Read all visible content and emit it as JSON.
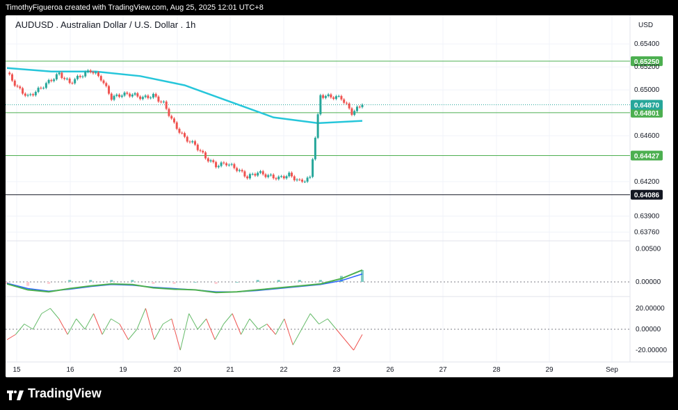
{
  "header": {
    "attribution": "TimothyFigueroa created with TradingView.com, Aug 25, 2025 12:01 UTC+8"
  },
  "footer": {
    "brand": "TradingView"
  },
  "colors": {
    "up": "#26a69a",
    "down": "#ef5350",
    "ma": "#26c6da",
    "level": "#4caf50",
    "support_dark": "#131722",
    "macd_fast": "#4caf50",
    "macd_slow": "#2962ff",
    "stoch_up": "#66bb6a",
    "stoch_down": "#ef5350"
  },
  "chart_data": {
    "type": "candlestick",
    "title": "AUDUSD . Australian Dollar / U.S. Dollar . 1h",
    "currency": "USD",
    "price_ticks": [
      "0.65400",
      "0.65200",
      "0.65000",
      "0.64600",
      "0.64200",
      "0.63900",
      "0.63760"
    ],
    "x_ticks": [
      "15",
      "16",
      "19",
      "20",
      "21",
      "22",
      "23",
      "26",
      "27",
      "28",
      "29",
      "Sep"
    ],
    "levels": [
      {
        "label": "0.65250",
        "value": 0.6525,
        "color": "#4caf50"
      },
      {
        "label": "0.64801",
        "value": 0.64801,
        "color": "#4caf50"
      },
      {
        "label": "0.64427",
        "value": 0.64427,
        "color": "#4caf50"
      },
      {
        "label": "0.64086",
        "value": 0.64086,
        "color": "#131722"
      }
    ],
    "last_price": {
      "label": "0.64870",
      "value": 0.6487
    },
    "price_series": [
      {
        "x": "Aug 14 20:00",
        "close": 0.6515
      },
      {
        "x": "Aug 15 00:00",
        "close": 0.6502
      },
      {
        "x": "Aug 15 06:00",
        "close": 0.6494
      },
      {
        "x": "Aug 15 12:00",
        "close": 0.65
      },
      {
        "x": "Aug 15 18:00",
        "close": 0.6507
      },
      {
        "x": "Aug 16 00:00",
        "close": 0.6514
      },
      {
        "x": "Aug 16 06:00",
        "close": 0.6506
      },
      {
        "x": "Aug 16 12:00",
        "close": 0.6512
      },
      {
        "x": "Aug 16 18:00",
        "close": 0.6517
      },
      {
        "x": "Aug 18 00:00",
        "close": 0.651
      },
      {
        "x": "Aug 18 06:00",
        "close": 0.6493
      },
      {
        "x": "Aug 18 12:00",
        "close": 0.6496
      },
      {
        "x": "Aug 18 18:00",
        "close": 0.6496
      },
      {
        "x": "Aug 19 00:00",
        "close": 0.6493
      },
      {
        "x": "Aug 19 06:00",
        "close": 0.6495
      },
      {
        "x": "Aug 19 12:00",
        "close": 0.6488
      },
      {
        "x": "Aug 19 18:00",
        "close": 0.647
      },
      {
        "x": "Aug 20 00:00",
        "close": 0.6458
      },
      {
        "x": "Aug 20 06:00",
        "close": 0.6452
      },
      {
        "x": "Aug 20 12:00",
        "close": 0.6441
      },
      {
        "x": "Aug 20 18:00",
        "close": 0.6434
      },
      {
        "x": "Aug 21 00:00",
        "close": 0.6436
      },
      {
        "x": "Aug 21 06:00",
        "close": 0.6431
      },
      {
        "x": "Aug 21 12:00",
        "close": 0.6424
      },
      {
        "x": "Aug 21 18:00",
        "close": 0.6428
      },
      {
        "x": "Aug 22 00:00",
        "close": 0.6425
      },
      {
        "x": "Aug 22 06:00",
        "close": 0.6423
      },
      {
        "x": "Aug 22 12:00",
        "close": 0.6426
      },
      {
        "x": "Aug 22 18:00",
        "close": 0.642
      },
      {
        "x": "Aug 22 22:00",
        "close": 0.6423
      },
      {
        "x": "Aug 23 00:00",
        "close": 0.6495
      },
      {
        "x": "Aug 23 04:00",
        "close": 0.6494
      },
      {
        "x": "Aug 23 08:00",
        "close": 0.6493
      },
      {
        "x": "Aug 23 10:00",
        "close": 0.648
      },
      {
        "x": "Aug 23 12:00",
        "close": 0.6487
      }
    ],
    "ma_series": [
      {
        "x": "Aug 14 20:00",
        "value": 0.6519
      },
      {
        "x": "Aug 16 00:00",
        "value": 0.6516
      },
      {
        "x": "Aug 18 00:00",
        "value": 0.6516
      },
      {
        "x": "Aug 19 00:00",
        "value": 0.6512
      },
      {
        "x": "Aug 20 00:00",
        "value": 0.6504
      },
      {
        "x": "Aug 21 00:00",
        "value": 0.649
      },
      {
        "x": "Aug 22 00:00",
        "value": 0.6476
      },
      {
        "x": "Aug 23 00:00",
        "value": 0.6471
      },
      {
        "x": "Aug 23 12:00",
        "value": 0.6473
      }
    ],
    "macd": {
      "ticks": [
        "0.00500",
        "0.00000"
      ],
      "fast": [
        -0.0003,
        -0.0012,
        -0.0015,
        -0.001,
        -0.0006,
        -0.0003,
        -0.0004,
        -0.0009,
        -0.0011,
        -0.0012,
        -0.0016,
        -0.0015,
        -0.0012,
        -0.0009,
        -0.0006,
        -0.0003,
        0.0005,
        0.0018
      ],
      "slow": [
        -0.0002,
        -0.001,
        -0.0014,
        -0.0011,
        -0.0007,
        -0.0004,
        -0.0005,
        -0.0008,
        -0.001,
        -0.0012,
        -0.0015,
        -0.0015,
        -0.0013,
        -0.001,
        -0.0007,
        -0.0004,
        0.0002,
        0.0012
      ]
    },
    "oscillator": {
      "ticks": [
        "20.00000",
        "0.00000",
        "-20.00000"
      ],
      "values": [
        -10,
        -5,
        5,
        0,
        15,
        20,
        10,
        -5,
        10,
        0,
        15,
        -5,
        10,
        5,
        -10,
        0,
        20,
        -10,
        5,
        10,
        -20,
        15,
        0,
        10,
        -10,
        5,
        15,
        -5,
        10,
        0,
        5,
        -5,
        10,
        -15,
        0,
        15,
        5,
        10,
        0,
        -10,
        -20,
        -5
      ]
    }
  }
}
